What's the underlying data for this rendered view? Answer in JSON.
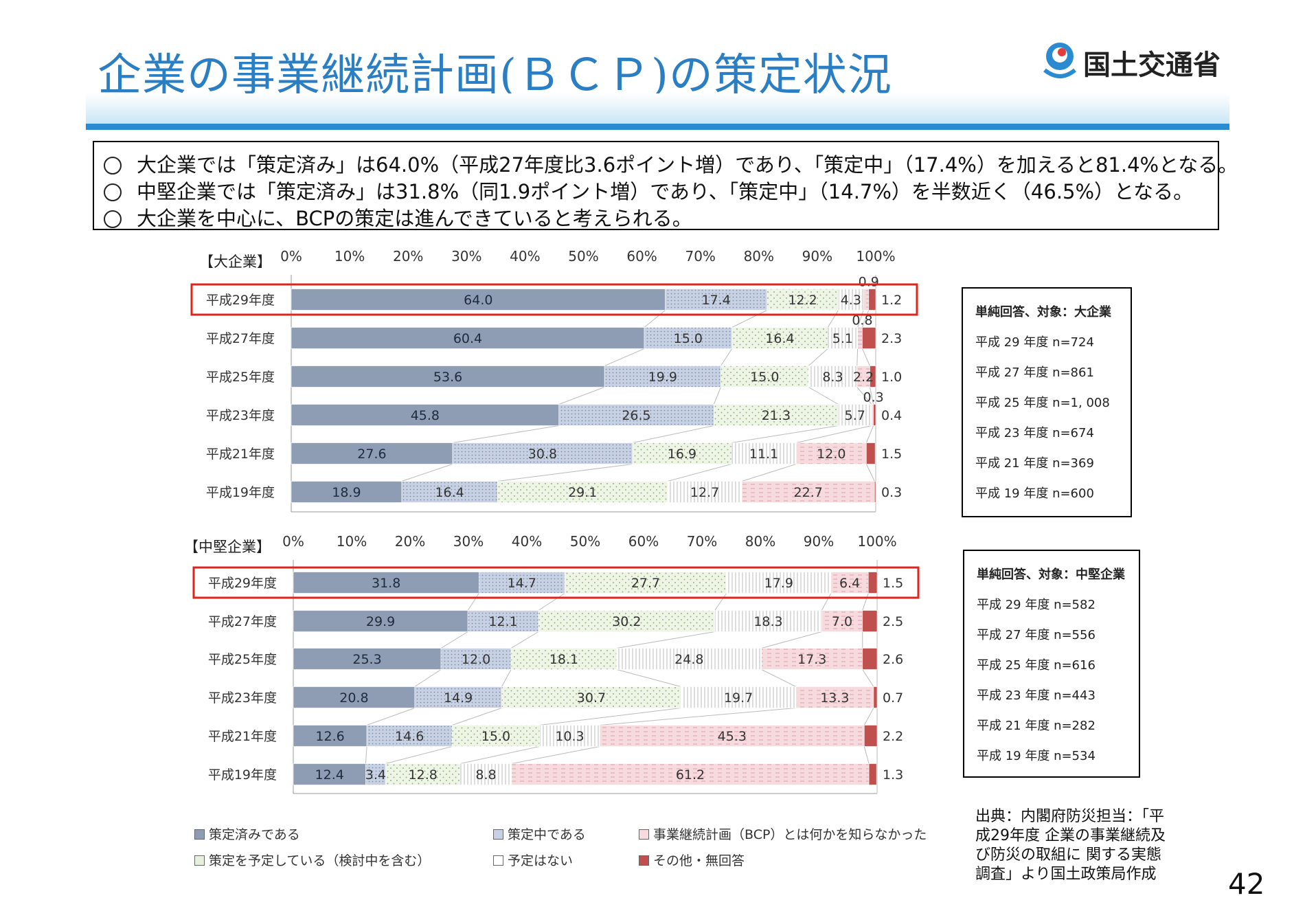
{
  "title": "企業の事業継続計画(ＢＣＰ)の策定状況",
  "logo": {
    "text": "国土交通省",
    "icon": "mlit-logo-icon"
  },
  "summary": [
    "大企業では「策定済み」は64.0%（平成27年度比3.6ポイント増）であり、「策定中」（17.4%）を加えると81.4%となる。",
    "中堅企業では「策定済み」は31.8%（同1.9ポイント増）であり、「策定中」（14.7%）を半数近く（46.5%）となる。",
    "大企業を中心に、BCPの策定は進んできていると考えられる。"
  ],
  "categories_legend": [
    {
      "name": "策定済みである",
      "color": "#8e9db3"
    },
    {
      "name": "策定中である",
      "color": "#c7d1e3"
    },
    {
      "name": "事業継続計画（BCP）とは何かを知らなかった",
      "color": "#ffffff"
    },
    {
      "name": "策定を予定している（検討中を含む）",
      "color": "#e6f0dc"
    },
    {
      "name": "予定はない",
      "color": "#ffffff"
    },
    {
      "name": "その他・無回答",
      "color": "#c0504d"
    }
  ],
  "chart_data": [
    {
      "type": "bar",
      "orientation": "horizontal-stacked-100",
      "title": "【大企業】",
      "xlim": [
        0,
        100
      ],
      "x_ticks": [
        "0%",
        "10%",
        "20%",
        "30%",
        "40%",
        "50%",
        "60%",
        "70%",
        "80%",
        "90%",
        "100%"
      ],
      "categories": [
        "平成29年度",
        "平成27年度",
        "平成25年度",
        "平成23年度",
        "平成21年度",
        "平成19年度"
      ],
      "series": [
        {
          "name": "策定済みである",
          "values": [
            64.0,
            60.4,
            53.6,
            45.8,
            27.6,
            18.9
          ]
        },
        {
          "name": "策定中である",
          "values": [
            17.4,
            15.0,
            19.9,
            26.5,
            30.8,
            16.4
          ]
        },
        {
          "name": "策定を予定している（検討中を含む）",
          "values": [
            12.2,
            16.4,
            15.0,
            21.3,
            16.9,
            29.1
          ]
        },
        {
          "name": "予定はない",
          "values": [
            4.3,
            5.1,
            8.3,
            5.7,
            11.1,
            12.7
          ]
        },
        {
          "name": "事業継続計画（BCP）とは何かを知らなかった",
          "values": [
            0.9,
            0.8,
            2.2,
            0.3,
            12.0,
            22.7
          ]
        },
        {
          "name": "その他・無回答",
          "values": [
            1.2,
            2.3,
            1.0,
            0.4,
            1.5,
            0.3
          ]
        }
      ],
      "label_texts": [
        [
          "64.0",
          "17.4",
          "12.2",
          "4.3",
          "0.9",
          "1.2"
        ],
        [
          "60.4",
          "15.0",
          "16.4",
          "5.1",
          "0.8",
          "2.3"
        ],
        [
          "53.6",
          "19.9",
          "15.0",
          "8.3",
          "2.2",
          "1.0"
        ],
        [
          "45.8",
          "26.5",
          "21.3",
          "5.7",
          "0.3",
          "0.4"
        ],
        [
          "27.6",
          "30.8",
          "16.9",
          "11.1",
          "12.0",
          "1.5"
        ],
        [
          "18.9",
          "16.4",
          "29.1",
          "12.7",
          "22.7",
          "0.3"
        ]
      ],
      "highlighted_category": "平成29年度",
      "sample_box": {
        "title": "単純回答、対象：大企業",
        "lines": [
          "平成 29 年度 n=724",
          "平成 27 年度 n=861",
          "平成 25 年度 n=1, 008",
          "平成 23 年度 n=674",
          "平成 21 年度 n=369",
          "平成 19 年度 n=600"
        ]
      }
    },
    {
      "type": "bar",
      "orientation": "horizontal-stacked-100",
      "title": "【中堅企業】",
      "xlim": [
        0,
        100
      ],
      "x_ticks": [
        "0%",
        "10%",
        "20%",
        "30%",
        "40%",
        "50%",
        "60%",
        "70%",
        "80%",
        "90%",
        "100%"
      ],
      "categories": [
        "平成29年度",
        "平成27年度",
        "平成25年度",
        "平成23年度",
        "平成21年度",
        "平成19年度"
      ],
      "series": [
        {
          "name": "策定済みである",
          "values": [
            31.8,
            29.9,
            25.3,
            20.8,
            12.6,
            12.4
          ]
        },
        {
          "name": "策定中である",
          "values": [
            14.7,
            12.1,
            12.0,
            14.9,
            14.6,
            3.4
          ]
        },
        {
          "name": "策定を予定している（検討中を含む）",
          "values": [
            27.7,
            30.2,
            18.1,
            30.7,
            15.0,
            12.8
          ]
        },
        {
          "name": "予定はない",
          "values": [
            17.9,
            18.3,
            24.8,
            19.7,
            10.3,
            8.8
          ]
        },
        {
          "name": "事業継続計画（BCP）とは何かを知らなかった",
          "values": [
            6.4,
            7.0,
            17.3,
            13.3,
            45.3,
            61.2
          ]
        },
        {
          "name": "その他・無回答",
          "values": [
            1.5,
            2.5,
            2.6,
            0.7,
            2.2,
            1.3
          ]
        }
      ],
      "label_texts": [
        [
          "31.8",
          "14.7",
          "27.7",
          "17.9",
          "6.4",
          "1.5"
        ],
        [
          "29.9",
          "12.1",
          "30.2",
          "18.3",
          "7.0",
          "2.5"
        ],
        [
          "25.3",
          "12.0",
          "18.1",
          "24.8",
          "17.3",
          "2.6"
        ],
        [
          "20.8",
          "14.9",
          "30.7",
          "19.7",
          "13.3",
          "0.7"
        ],
        [
          "12.6",
          "14.6",
          "15.0",
          "10.3",
          "45.3",
          "2.2"
        ],
        [
          "12.4",
          "3.4",
          "12.8",
          "8.8",
          "61.2",
          "1.3"
        ]
      ],
      "highlighted_category": "平成29年度",
      "sample_box": {
        "title": "単純回答、対象：中堅企業",
        "lines": [
          "平成 29 年度 n=582",
          "平成 27 年度 n=556",
          "平成 25 年度 n=616",
          "平成 23 年度 n=443",
          "平成 21 年度 n=282",
          "平成 19 年度 n=534"
        ]
      }
    }
  ],
  "source": "出典：内閣府防災担当：「平成29年度 企業の事業継続及び防災の取組に 関する実態調査」より国土政策局作成",
  "page_number": "42"
}
